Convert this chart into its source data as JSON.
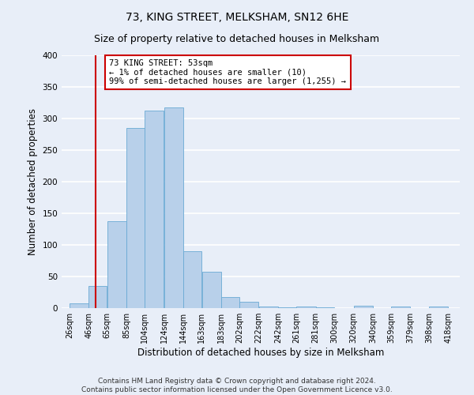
{
  "title": "73, KING STREET, MELKSHAM, SN12 6HE",
  "subtitle": "Size of property relative to detached houses in Melksham",
  "xlabel": "Distribution of detached houses by size in Melksham",
  "ylabel": "Number of detached properties",
  "bar_left_edges": [
    26,
    46,
    65,
    85,
    104,
    124,
    144,
    163,
    183,
    202,
    222,
    242,
    261,
    281,
    300,
    320,
    340,
    359,
    379,
    398
  ],
  "bar_widths": [
    20,
    19,
    20,
    19,
    20,
    20,
    19,
    20,
    19,
    20,
    20,
    19,
    20,
    19,
    20,
    20,
    19,
    20,
    19,
    20
  ],
  "bar_heights": [
    7,
    35,
    138,
    285,
    313,
    317,
    90,
    57,
    18,
    10,
    3,
    1,
    2,
    1,
    0,
    4,
    0,
    3,
    0,
    3
  ],
  "tick_labels": [
    "26sqm",
    "46sqm",
    "65sqm",
    "85sqm",
    "104sqm",
    "124sqm",
    "144sqm",
    "163sqm",
    "183sqm",
    "202sqm",
    "222sqm",
    "242sqm",
    "261sqm",
    "281sqm",
    "300sqm",
    "320sqm",
    "340sqm",
    "359sqm",
    "379sqm",
    "398sqm",
    "418sqm"
  ],
  "tick_positions": [
    26,
    46,
    65,
    85,
    104,
    124,
    144,
    163,
    183,
    202,
    222,
    242,
    261,
    281,
    300,
    320,
    340,
    359,
    379,
    398,
    418
  ],
  "ylim": [
    0,
    400
  ],
  "yticks": [
    0,
    50,
    100,
    150,
    200,
    250,
    300,
    350,
    400
  ],
  "bar_color": "#b8d0ea",
  "bar_edge_color": "#6aaad4",
  "property_line_x": 53,
  "property_line_color": "#cc0000",
  "annotation_line1": "73 KING STREET: 53sqm",
  "annotation_line2": "← 1% of detached houses are smaller (10)",
  "annotation_line3": "99% of semi-detached houses are larger (1,255) →",
  "annotation_box_color": "#cc0000",
  "footer_line1": "Contains HM Land Registry data © Crown copyright and database right 2024.",
  "footer_line2": "Contains public sector information licensed under the Open Government Licence v3.0.",
  "background_color": "#e8eef8",
  "grid_color": "#ffffff",
  "title_fontsize": 10,
  "subtitle_fontsize": 9,
  "axis_label_fontsize": 8.5,
  "tick_fontsize": 7,
  "footer_fontsize": 6.5
}
